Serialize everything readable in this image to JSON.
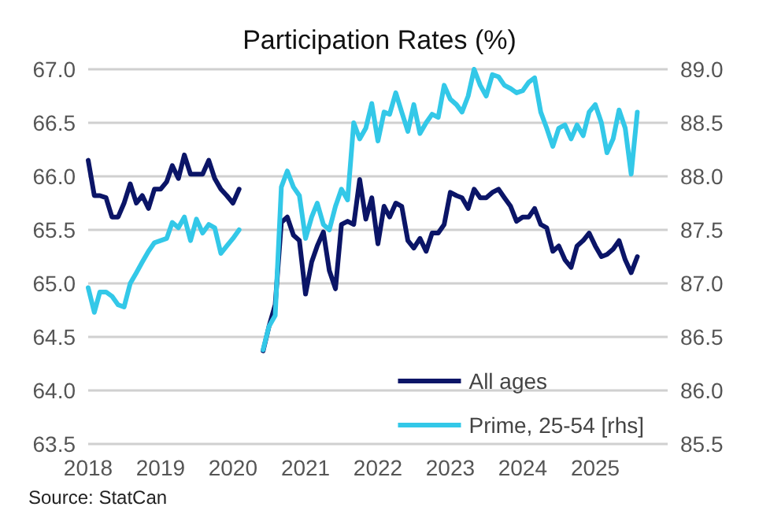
{
  "chart_data": {
    "type": "line",
    "title": "Participation Rates (%)",
    "annotations": [
      "Source: StatCan"
    ],
    "x": [
      "2018-01",
      "2018-02",
      "2018-03",
      "2018-04",
      "2018-05",
      "2018-06",
      "2018-07",
      "2018-08",
      "2018-09",
      "2018-10",
      "2018-11",
      "2018-12",
      "2019-01",
      "2019-02",
      "2019-03",
      "2019-04",
      "2019-05",
      "2019-06",
      "2019-07",
      "2019-08",
      "2019-09",
      "2019-10",
      "2019-11",
      "2019-12",
      "2020-01",
      "2020-02",
      "2020-03",
      "2020-04",
      "2020-05",
      "2020-06",
      "2020-07",
      "2020-08",
      "2020-09",
      "2020-10",
      "2020-11",
      "2020-12",
      "2021-01",
      "2021-02",
      "2021-03",
      "2021-04",
      "2021-05",
      "2021-06",
      "2021-07",
      "2021-08",
      "2021-09",
      "2021-10",
      "2021-11",
      "2021-12",
      "2022-01",
      "2022-02",
      "2022-03",
      "2022-04",
      "2022-05",
      "2022-06",
      "2022-07",
      "2022-08",
      "2022-09",
      "2022-10",
      "2022-11",
      "2022-12",
      "2023-01",
      "2023-02",
      "2023-03",
      "2023-04",
      "2023-05",
      "2023-06",
      "2023-07",
      "2023-08",
      "2023-09",
      "2023-10",
      "2023-11",
      "2023-12",
      "2024-01",
      "2024-02",
      "2024-03",
      "2024-04",
      "2024-05",
      "2024-06",
      "2024-07",
      "2024-08",
      "2024-09",
      "2024-10",
      "2024-11",
      "2024-12",
      "2025-01",
      "2025-02",
      "2025-03",
      "2025-04",
      "2025-05",
      "2025-06",
      "2025-07",
      "2025-08"
    ],
    "series": [
      {
        "name": "All ages",
        "color": "#0b1567",
        "values": [
          66.15,
          65.82,
          65.82,
          65.8,
          65.62,
          65.62,
          65.75,
          65.93,
          65.75,
          65.82,
          65.7,
          65.88,
          65.88,
          65.95,
          66.1,
          65.98,
          66.2,
          66.02,
          66.02,
          66.02,
          66.15,
          65.98,
          65.88,
          65.82,
          65.75,
          65.88,
          null,
          null,
          null,
          64.37,
          64.6,
          64.8,
          65.57,
          65.62,
          65.45,
          65.4,
          64.9,
          65.2,
          65.35,
          65.48,
          65.12,
          64.95,
          65.55,
          65.58,
          65.55,
          65.97,
          65.6,
          65.8,
          65.37,
          65.72,
          65.62,
          65.75,
          65.72,
          65.4,
          65.33,
          65.42,
          65.3,
          65.47,
          65.47,
          65.55,
          65.85,
          65.82,
          65.8,
          65.7,
          65.88,
          65.8,
          65.8,
          65.85,
          65.88,
          65.8,
          65.72,
          65.58,
          65.62,
          65.62,
          65.7,
          65.55,
          65.52,
          65.3,
          65.35,
          65.22,
          65.15,
          65.35,
          65.4,
          65.47,
          65.35,
          65.25,
          65.27,
          65.32,
          65.4,
          65.22,
          65.1,
          65.25
        ]
      },
      {
        "name": "Prime, 25-54 [rhs]",
        "color": "#33c8e8",
        "axis": "y2",
        "values": [
          86.96,
          86.73,
          86.92,
          86.92,
          86.88,
          86.8,
          86.78,
          87.0,
          87.1,
          87.2,
          87.3,
          87.38,
          87.4,
          87.42,
          87.57,
          87.52,
          87.62,
          87.4,
          87.6,
          87.47,
          87.55,
          87.52,
          87.28,
          87.35,
          87.42,
          87.5,
          null,
          null,
          null,
          86.38,
          86.6,
          86.7,
          87.9,
          88.05,
          87.9,
          87.82,
          87.42,
          87.62,
          87.75,
          87.55,
          87.5,
          87.72,
          87.88,
          87.78,
          88.5,
          88.35,
          88.45,
          88.68,
          88.33,
          88.6,
          88.58,
          88.78,
          88.6,
          88.42,
          88.67,
          88.4,
          88.5,
          88.58,
          88.55,
          88.85,
          88.72,
          88.67,
          88.6,
          88.75,
          89.0,
          88.85,
          88.75,
          88.95,
          88.93,
          88.85,
          88.82,
          88.78,
          88.8,
          88.88,
          88.92,
          88.6,
          88.45,
          88.28,
          88.45,
          88.48,
          88.35,
          88.48,
          88.38,
          88.6,
          88.67,
          88.5,
          88.22,
          88.35,
          88.62,
          88.45,
          88.02,
          88.6
        ]
      }
    ],
    "xlim": [
      "2018-01",
      "2026-01"
    ],
    "xticks": [
      "2018",
      "2019",
      "2020",
      "2021",
      "2022",
      "2023",
      "2024",
      "2025"
    ],
    "ylim": [
      63.5,
      67
    ],
    "yticks": [
      {
        "value": 63.5,
        "label": "63.5"
      },
      {
        "value": 64,
        "label": "64.0"
      },
      {
        "value": 64.5,
        "label": "64.5"
      },
      {
        "value": 65,
        "label": "65.0"
      },
      {
        "value": 65.5,
        "label": "65.5"
      },
      {
        "value": 66,
        "label": "66.0"
      },
      {
        "value": 66.5,
        "label": "66.5"
      },
      {
        "value": 67,
        "label": "67.0"
      }
    ],
    "y2lim": [
      85.5,
      89
    ],
    "y2ticks": [
      {
        "value": 85.5,
        "label": "85.5"
      },
      {
        "value": 86,
        "label": "86.0"
      },
      {
        "value": 86.5,
        "label": "86.5"
      },
      {
        "value": 87,
        "label": "87.0"
      },
      {
        "value": 87.5,
        "label": "87.5"
      },
      {
        "value": 88,
        "label": "88.0"
      },
      {
        "value": 88.5,
        "label": "88.5"
      },
      {
        "value": 89,
        "label": "89.0"
      }
    ],
    "grid": "y",
    "legend": "bottom right",
    "marker": "none",
    "line_style": "solid"
  }
}
